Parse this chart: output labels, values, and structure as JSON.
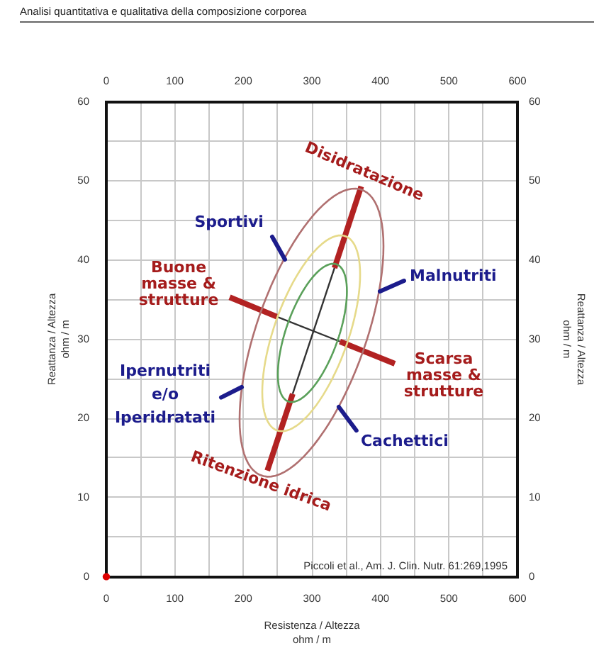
{
  "chart_data": {
    "type": "line",
    "title": "Analisi quantitativa e qualitativa della composizione corporea",
    "xlabel": "Resistenza / Altezza\nohm / m",
    "ylabel": "Reattanza / Altezza\nohm / m",
    "y2label": "Reattanza / Altezza\nohm / m",
    "xlim": [
      0,
      600
    ],
    "xticks": [
      0,
      {
        "value": 50,
        "label": null
      },
      100,
      {
        "value": 150,
        "label": null
      },
      200,
      {
        "value": 250,
        "label": null
      },
      300,
      {
        "value": 350,
        "label": null
      },
      400,
      {
        "value": 450,
        "label": null
      },
      500,
      {
        "value": 550,
        "label": null
      },
      600
    ],
    "x2lim": [
      0,
      600
    ],
    "x2ticks": [
      0,
      100,
      200,
      300,
      400,
      500,
      600
    ],
    "ylim": [
      0,
      60
    ],
    "yticks": [
      0,
      {
        "value": 5,
        "label": null
      },
      10,
      {
        "value": 15,
        "label": null
      },
      20,
      {
        "value": 25,
        "label": null
      },
      30,
      {
        "value": 35,
        "label": null
      },
      40,
      {
        "value": 45,
        "label": null
      },
      50,
      {
        "value": 55,
        "label": null
      },
      60
    ],
    "y2lim": [
      0,
      60
    ],
    "y2ticks": [
      0,
      10,
      20,
      30,
      40,
      50,
      60
    ],
    "grid": true,
    "marker": "none",
    "series": [
      {
        "color": "#b22222",
        "x": [
          235,
          272
        ],
        "values": [
          13.4,
          23.1
        ]
      },
      {
        "color": "#333333",
        "x": [
          272,
          333
        ],
        "values": [
          23.1,
          39
        ]
      },
      {
        "color": "#b22222",
        "x": [
          333,
          372
        ],
        "values": [
          39,
          49.3
        ]
      },
      {
        "color": "#b22222",
        "x": [
          180,
          250
        ],
        "values": [
          35.3,
          32.8
        ]
      },
      {
        "color": "#333333",
        "x": [
          250,
          341
        ],
        "values": [
          32.8,
          29.7
        ]
      },
      {
        "color": "#b22222",
        "x": [
          341,
          421
        ],
        "values": [
          29.7,
          26.9
        ]
      },
      {
        "type": "scatter",
        "marker": "circle",
        "color": "#dd0000",
        "x": [
          0
        ],
        "values": [
          0
        ]
      }
    ],
    "annotations": [
      {
        "text": "Disidratazione",
        "x": 372,
        "y": 49.3
      },
      "Sportivi",
      {
        "text": "Buone\nmasse &\nstrutture",
        "x": 180,
        "y": 35.3
      },
      "Malnutriti",
      {
        "text": "Scarsa\nmasse &\nstrutture",
        "x": 421,
        "y": 26.9
      },
      "Ipernutriti\ne/o\nIperidratati",
      "Cachettici",
      {
        "text": "Ritenzione idrica",
        "x": 235,
        "y": 13.4
      },
      "Piccoli et al., Am. J. Clin. Nutr. 61:269,1995"
    ]
  }
}
